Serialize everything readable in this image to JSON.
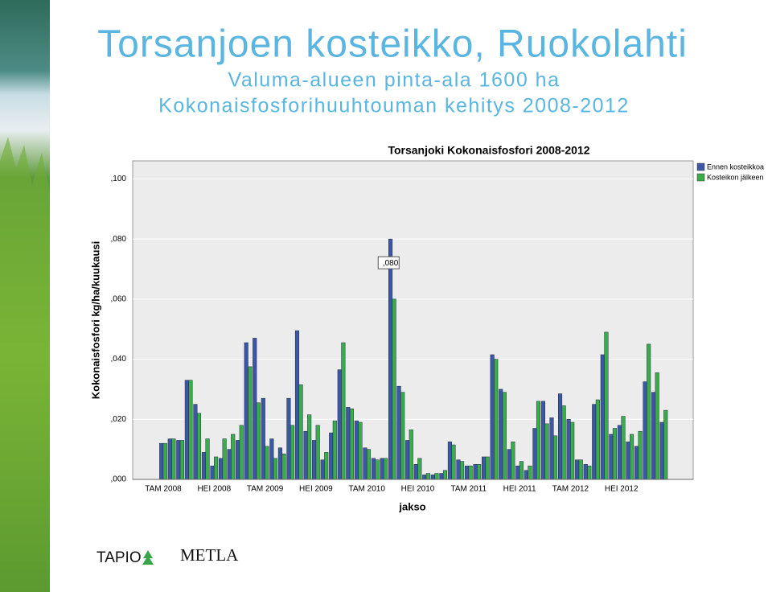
{
  "slide": {
    "title": "Torsanjoen kosteikko, Ruokolahti",
    "subtitle": "Valuma-alueen pinta-ala 1600 ha",
    "subtitle2": "Kokonaisfosforihuuhtouman kehitys 2008-2012"
  },
  "logos": [
    "TAPIO",
    "METLA"
  ],
  "chart_data": {
    "type": "bar",
    "title": "Torsanjoki Kokonaisfosfori 2008-2012",
    "x_label": "jakso",
    "y_label": "Kokonaisfosfori kg/ha/kuukausi",
    "categories": [
      "TAM 2008",
      null,
      null,
      null,
      null,
      null,
      "HEI 2008",
      null,
      null,
      null,
      null,
      null,
      "TAM 2009",
      null,
      null,
      null,
      null,
      null,
      "HEI 2009",
      null,
      null,
      null,
      null,
      null,
      "TAM 2010",
      null,
      null,
      null,
      null,
      null,
      "HEI 2010",
      null,
      null,
      null,
      null,
      null,
      "TAM 2011",
      null,
      null,
      null,
      null,
      null,
      "HEI 2011",
      null,
      null,
      null,
      null,
      null,
      "TAM 2012",
      null,
      null,
      null,
      null,
      null,
      "HEI 2012",
      null,
      null,
      null,
      null,
      null
    ],
    "series": [
      {
        "name": "Ennen kosteikkoa",
        "color": "#3b57a6",
        "values": [
          0.012,
          0.0135,
          0.013,
          0.033,
          0.025,
          0.009,
          0.0045,
          0.007,
          0.01,
          0.013,
          0.0455,
          0.047,
          0.027,
          0.0135,
          0.0105,
          0.027,
          0.0495,
          0.016,
          0.013,
          0.0065,
          0.0155,
          0.0365,
          0.024,
          0.0195,
          0.0105,
          0.007,
          0.007,
          0.08,
          0.031,
          0.013,
          0.005,
          0.0015,
          0.0015,
          0.002,
          0.0125,
          0.0065,
          0.0045,
          0.005,
          0.0075,
          0.0415,
          0.03,
          0.01,
          0.0045,
          0.003,
          0.017,
          0.026,
          0.0205,
          0.0285,
          0.02,
          0.0065,
          0.005,
          0.025,
          0.0415,
          0.015,
          0.018,
          0.0125,
          0.011,
          0.0325,
          0.029,
          0.019
        ],
        "value_labels": [
          null,
          null,
          null,
          null,
          null,
          null,
          null,
          null,
          null,
          null,
          null,
          null,
          null,
          null,
          null,
          null,
          null,
          null,
          null,
          null,
          null,
          null,
          null,
          null,
          null,
          null,
          null,
          ",080",
          null,
          null,
          null,
          null,
          null,
          null,
          null,
          null,
          null,
          null,
          null,
          null,
          null,
          null,
          null,
          null,
          null,
          null,
          null,
          null,
          null,
          null,
          null,
          null,
          null,
          null,
          null,
          null,
          null,
          null,
          null,
          null
        ]
      },
      {
        "name": "Kosteikon jälkeen",
        "color": "#3aad4b",
        "values": [
          0.012,
          0.0135,
          0.013,
          0.033,
          0.022,
          0.0135,
          0.0075,
          0.0135,
          0.015,
          0.018,
          0.0375,
          0.0255,
          0.011,
          0.007,
          0.0085,
          0.018,
          0.0315,
          0.0215,
          0.018,
          0.009,
          0.0195,
          0.0455,
          0.0235,
          0.019,
          0.01,
          0.0065,
          0.007,
          0.06,
          0.029,
          0.0165,
          0.007,
          0.002,
          0.002,
          0.003,
          0.0115,
          0.006,
          0.0045,
          0.005,
          0.0075,
          0.04,
          0.029,
          0.0125,
          0.006,
          0.0045,
          0.026,
          0.0185,
          0.0145,
          0.0245,
          0.019,
          0.0065,
          0.0045,
          0.0265,
          0.049,
          0.017,
          0.021,
          0.015,
          0.016,
          0.045,
          0.0355,
          0.023
        ]
      }
    ],
    "ylim": [
      0,
      0.106
    ],
    "yticks": [
      {
        "value": 0,
        "label": ",000"
      },
      {
        "value": 0.02,
        "label": ",020"
      },
      {
        "value": 0.04,
        "label": ",040"
      },
      {
        "value": 0.06,
        "label": ",060"
      },
      {
        "value": 0.08,
        "label": ",080"
      },
      {
        "value": 0.1,
        "label": ",100"
      }
    ],
    "grid": true,
    "legend": "top-right"
  }
}
